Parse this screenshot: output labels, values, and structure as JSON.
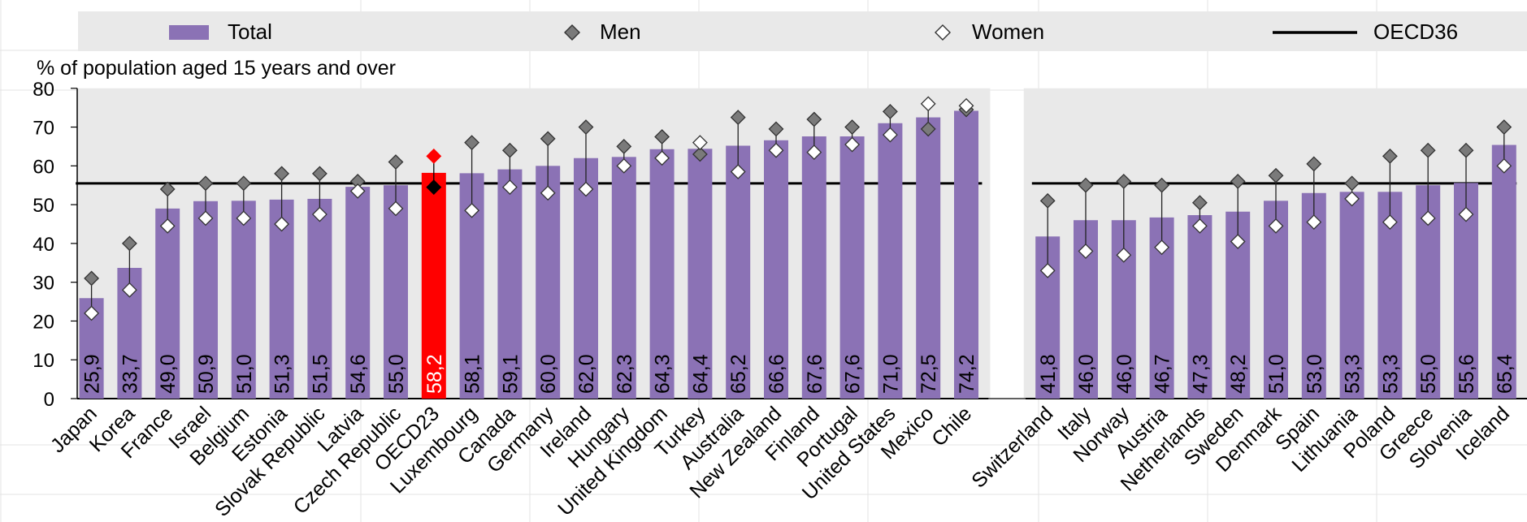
{
  "chart_data": {
    "type": "bar",
    "ylabel": "% of population aged 15 years and over",
    "ylim": [
      0,
      80
    ],
    "yticks": [
      0,
      10,
      20,
      30,
      40,
      50,
      60,
      70,
      80
    ],
    "legend": {
      "position": "top",
      "items": [
        {
          "label": "Total",
          "marker": "bar"
        },
        {
          "label": "Men",
          "marker": "diamond-filled"
        },
        {
          "label": "Women",
          "marker": "diamond-open"
        },
        {
          "label": "OECD36",
          "marker": "line"
        }
      ]
    },
    "groups": [
      {
        "reference_line": {
          "name": "OECD36",
          "value": 55.5
        },
        "categories": [
          "Japan",
          "Korea",
          "France",
          "Israel",
          "Belgium",
          "Estonia",
          "Slovak Republic",
          "Latvia",
          "Czech Republic",
          "OECD23",
          "Luxembourg",
          "Canada",
          "Germany",
          "Ireland",
          "Hungary",
          "United Kingdom",
          "Turkey",
          "Australia",
          "New Zealand",
          "Finland",
          "Portugal",
          "United States",
          "Mexico",
          "Chile"
        ],
        "bar_labels": [
          "25,9",
          "33,7",
          "49,0",
          "50,9",
          "51,0",
          "51,3",
          "51,5",
          "54,6",
          "55,0",
          "58,2",
          "58,1",
          "59,1",
          "60,0",
          "62,0",
          "62,3",
          "64,3",
          "64,4",
          "65,2",
          "66,6",
          "67,6",
          "67,6",
          "71,0",
          "72,5",
          "74,2"
        ],
        "series": [
          {
            "name": "Total",
            "values": [
              25.9,
              33.7,
              49.0,
              50.9,
              51.0,
              51.3,
              51.5,
              54.6,
              55.0,
              58.2,
              58.1,
              59.1,
              60.0,
              62.0,
              62.3,
              64.3,
              64.4,
              65.2,
              66.6,
              67.6,
              67.6,
              71.0,
              72.5,
              74.2
            ]
          },
          {
            "name": "Men",
            "values": [
              31,
              40,
              54,
              55.5,
              55.5,
              58,
              58,
              56,
              61,
              54.5,
              66,
              64,
              67,
              70,
              65,
              67.5,
              63,
              72.5,
              69.5,
              72,
              70,
              74,
              69.5,
              74.5
            ]
          },
          {
            "name": "Women",
            "values": [
              22,
              28,
              44.5,
              46.5,
              46.5,
              45,
              47.5,
              53.5,
              49,
              62.5,
              48.5,
              54.5,
              53,
              54,
              60,
              62,
              66,
              58.5,
              64,
              63.5,
              65.5,
              68,
              76,
              75.5
            ]
          }
        ]
      },
      {
        "reference_line": {
          "name": "OECD36",
          "value": 55.5
        },
        "categories": [
          "Switzerland",
          "Italy",
          "Norway",
          "Austria",
          "Netherlands",
          "Sweden",
          "Denmark",
          "Spain",
          "Lithuania",
          "Poland",
          "Greece",
          "Slovenia",
          "Iceland"
        ],
        "bar_labels": [
          "41,8",
          "46,0",
          "46,0",
          "46,7",
          "47,3",
          "48,2",
          "51,0",
          "53,0",
          "53,3",
          "53,3",
          "55,0",
          "55,6",
          "65,4"
        ],
        "series": [
          {
            "name": "Total",
            "values": [
              41.8,
              46.0,
              46.0,
              46.7,
              47.3,
              48.2,
              51.0,
              53.0,
              53.3,
              53.3,
              55.0,
              55.6,
              65.4
            ]
          },
          {
            "name": "Men",
            "values": [
              51,
              55,
              56,
              55,
              50.5,
              56,
              57.5,
              60.5,
              55.5,
              62.5,
              64,
              64,
              70
            ]
          },
          {
            "name": "Women",
            "values": [
              33,
              38,
              37,
              39,
              44.5,
              40.5,
              44.5,
              45.5,
              51.5,
              45.5,
              46.5,
              47.5,
              60
            ]
          }
        ]
      }
    ],
    "highlight": {
      "category": "OECD23",
      "bar_color": "#FF0000",
      "men_color": "#000000",
      "women_color": "#FF0000"
    }
  },
  "colors": {
    "bar": "#8B72B5",
    "plot_bg": "#E9E9E9",
    "legend_bg": "#E9E9E9",
    "marker_filled": "#7A7A7A",
    "marker_open": "#FFFFFF",
    "marker_stroke": "#333333",
    "reference_line": "#000000",
    "grid_frame": "#E3E3E3"
  }
}
